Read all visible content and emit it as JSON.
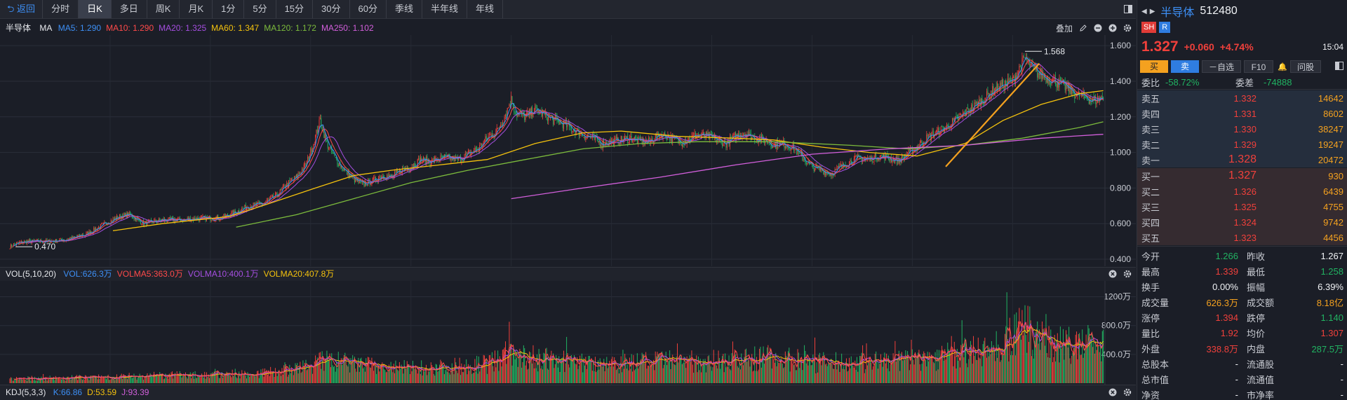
{
  "toolbar": {
    "back_label": "返回",
    "periods": [
      "分时",
      "日K",
      "多日",
      "周K",
      "月K",
      "1分",
      "5分",
      "15分",
      "30分",
      "60分",
      "季线",
      "半年线",
      "年线"
    ],
    "active_period": "日K"
  },
  "main_legend": {
    "name": "半导体",
    "ma_label": "MA",
    "items": [
      {
        "text": "MA5: 1.290",
        "color": "#3d8ff5"
      },
      {
        "text": "MA10: 1.290",
        "color": "#ff4a4a"
      },
      {
        "text": "MA20: 1.325",
        "color": "#a54ee0"
      },
      {
        "text": "MA60: 1.347",
        "color": "#f4c20d"
      },
      {
        "text": "MA120: 1.172",
        "color": "#7cbb3c"
      },
      {
        "text": "MA250: 1.102",
        "color": "#d35fdc"
      }
    ],
    "overlay_label": "叠加"
  },
  "vol_legend": {
    "name": "VOL(5,10,20)",
    "items": [
      {
        "text": "VOL:626.3万",
        "color": "#3d8ff5"
      },
      {
        "text": "VOLMA5:363.0万",
        "color": "#ff4a4a"
      },
      {
        "text": "VOLMA10:400.1万",
        "color": "#a54ee0"
      },
      {
        "text": "VOLMA20:407.8万",
        "color": "#f4c20d"
      }
    ]
  },
  "kdj_legend": {
    "name": "KDJ(5,3,3)",
    "items": [
      {
        "text": "K:66.86",
        "color": "#3d8ff5"
      },
      {
        "text": "D:53.59",
        "color": "#f4c20d"
      },
      {
        "text": "J:93.39",
        "color": "#d35fdc"
      }
    ]
  },
  "chart_data": [
    {
      "type": "candlestick",
      "ylim": [
        0.4,
        1.64
      ],
      "yticks": [
        "1.600",
        "1.400",
        "1.200",
        "1.000",
        "0.800",
        "0.600",
        "0.400"
      ],
      "ytick_values": [
        1.6,
        1.4,
        1.2,
        1.0,
        0.8,
        0.6,
        0.4
      ],
      "annotations": [
        {
          "text": "1.568",
          "value": 1.568
        },
        {
          "text": "0.470",
          "value": 0.47
        }
      ],
      "close_path": [
        [
          0,
          0.47
        ],
        [
          8,
          0.49
        ],
        [
          20,
          0.5
        ],
        [
          40,
          0.5
        ],
        [
          60,
          0.51
        ],
        [
          80,
          0.54
        ],
        [
          100,
          0.6
        ],
        [
          115,
          0.64
        ],
        [
          125,
          0.65
        ],
        [
          140,
          0.6
        ],
        [
          160,
          0.62
        ],
        [
          180,
          0.62
        ],
        [
          200,
          0.63
        ],
        [
          220,
          0.63
        ],
        [
          235,
          0.66
        ],
        [
          250,
          0.7
        ],
        [
          265,
          0.71
        ],
        [
          280,
          0.76
        ],
        [
          290,
          0.82
        ],
        [
          300,
          0.86
        ],
        [
          310,
          0.93
        ],
        [
          318,
          1.05
        ],
        [
          325,
          1.18
        ],
        [
          332,
          1.05
        ],
        [
          340,
          0.97
        ],
        [
          350,
          0.9
        ],
        [
          360,
          0.85
        ],
        [
          370,
          0.82
        ],
        [
          380,
          0.84
        ],
        [
          390,
          0.87
        ],
        [
          400,
          0.86
        ],
        [
          410,
          0.9
        ],
        [
          420,
          0.92
        ],
        [
          430,
          0.96
        ],
        [
          440,
          0.95
        ],
        [
          455,
          0.97
        ],
        [
          470,
          0.96
        ],
        [
          480,
          0.99
        ],
        [
          490,
          1.02
        ],
        [
          500,
          1.08
        ],
        [
          510,
          1.12
        ],
        [
          518,
          1.2
        ],
        [
          525,
          1.3
        ],
        [
          530,
          1.22
        ],
        [
          540,
          1.2
        ],
        [
          550,
          1.24
        ],
        [
          560,
          1.21
        ],
        [
          570,
          1.18
        ],
        [
          580,
          1.16
        ],
        [
          590,
          1.13
        ],
        [
          600,
          1.1
        ],
        [
          610,
          1.08
        ],
        [
          620,
          1.05
        ],
        [
          630,
          1.06
        ],
        [
          640,
          1.07
        ],
        [
          650,
          1.08
        ],
        [
          660,
          1.06
        ],
        [
          670,
          1.06
        ],
        [
          680,
          1.1
        ],
        [
          690,
          1.09
        ],
        [
          700,
          1.06
        ],
        [
          710,
          1.07
        ],
        [
          720,
          1.1
        ],
        [
          730,
          1.09
        ],
        [
          740,
          1.07
        ],
        [
          750,
          1.05
        ],
        [
          760,
          1.09
        ],
        [
          770,
          1.11
        ],
        [
          780,
          1.08
        ],
        [
          790,
          1.07
        ],
        [
          800,
          1.04
        ],
        [
          810,
          1.05
        ],
        [
          820,
          1.03
        ],
        [
          830,
          0.97
        ],
        [
          840,
          0.92
        ],
        [
          850,
          0.9
        ],
        [
          860,
          0.88
        ],
        [
          870,
          0.92
        ],
        [
          880,
          0.95
        ],
        [
          890,
          0.97
        ],
        [
          900,
          0.96
        ],
        [
          910,
          0.98
        ],
        [
          920,
          0.97
        ],
        [
          930,
          0.95
        ],
        [
          940,
          0.99
        ],
        [
          950,
          1.03
        ],
        [
          960,
          1.08
        ],
        [
          970,
          1.11
        ],
        [
          980,
          1.14
        ],
        [
          990,
          1.18
        ],
        [
          1000,
          1.22
        ],
        [
          1010,
          1.26
        ],
        [
          1020,
          1.3
        ],
        [
          1030,
          1.35
        ],
        [
          1040,
          1.38
        ],
        [
          1050,
          1.4
        ],
        [
          1058,
          1.48
        ],
        [
          1063,
          1.53
        ],
        [
          1068,
          1.49
        ],
        [
          1075,
          1.45
        ],
        [
          1085,
          1.42
        ],
        [
          1095,
          1.4
        ],
        [
          1105,
          1.37
        ],
        [
          1115,
          1.33
        ],
        [
          1125,
          1.31
        ],
        [
          1135,
          1.29
        ],
        [
          1145,
          1.31
        ]
      ],
      "ma_lines": [
        {
          "name": "MA60",
          "color": "#f4c20d",
          "points": [
            [
              108,
              0.56
            ],
            [
              160,
              0.6
            ],
            [
              230,
              0.64
            ],
            [
              270,
              0.71
            ],
            [
              320,
              0.8
            ],
            [
              360,
              0.87
            ],
            [
              400,
              0.9
            ],
            [
              450,
              0.93
            ],
            [
              500,
              0.96
            ],
            [
              550,
              1.05
            ],
            [
              600,
              1.11
            ],
            [
              640,
              1.12
            ],
            [
              700,
              1.09
            ],
            [
              760,
              1.08
            ],
            [
              800,
              1.07
            ],
            [
              850,
              1.03
            ],
            [
              900,
              1.0
            ],
            [
              950,
              0.98
            ],
            [
              1000,
              1.05
            ],
            [
              1040,
              1.18
            ],
            [
              1080,
              1.27
            ],
            [
              1120,
              1.33
            ],
            [
              1145,
              1.347
            ]
          ]
        },
        {
          "name": "MA120",
          "color": "#7cbb3c",
          "points": [
            [
              237,
              0.58
            ],
            [
              300,
              0.65
            ],
            [
              360,
              0.74
            ],
            [
              420,
              0.83
            ],
            [
              480,
              0.9
            ],
            [
              540,
              0.96
            ],
            [
              600,
              1.02
            ],
            [
              660,
              1.05
            ],
            [
              720,
              1.06
            ],
            [
              800,
              1.06
            ],
            [
              880,
              1.04
            ],
            [
              940,
              1.02
            ],
            [
              1000,
              1.04
            ],
            [
              1060,
              1.08
            ],
            [
              1120,
              1.14
            ],
            [
              1145,
              1.172
            ]
          ]
        },
        {
          "name": "MA250",
          "color": "#d35fdc",
          "points": [
            [
              525,
              0.74
            ],
            [
              600,
              0.8
            ],
            [
              680,
              0.86
            ],
            [
              760,
              0.93
            ],
            [
              840,
              0.99
            ],
            [
              920,
              1.02
            ],
            [
              1000,
              1.04
            ],
            [
              1080,
              1.08
            ],
            [
              1145,
              1.102
            ]
          ]
        }
      ],
      "trendline": {
        "color": "#f4a11f",
        "points": [
          [
            980,
            0.92
          ],
          [
            1078,
            1.5
          ]
        ]
      }
    },
    {
      "type": "bar",
      "name": "VOL",
      "ylim": [
        0,
        1400
      ],
      "yticks": [
        "1200万",
        "800.0万",
        "400.0万"
      ],
      "ytick_values": [
        1200,
        800,
        400
      ],
      "volume_profile": [
        [
          0,
          60
        ],
        [
          100,
          90
        ],
        [
          150,
          110
        ],
        [
          200,
          120
        ],
        [
          260,
          140
        ],
        [
          300,
          200
        ],
        [
          330,
          330
        ],
        [
          360,
          280
        ],
        [
          400,
          220
        ],
        [
          450,
          230
        ],
        [
          500,
          280
        ],
        [
          520,
          420
        ],
        [
          560,
          340
        ],
        [
          600,
          300
        ],
        [
          650,
          300
        ],
        [
          700,
          320
        ],
        [
          760,
          330
        ],
        [
          800,
          380
        ],
        [
          840,
          300
        ],
        [
          880,
          300
        ],
        [
          920,
          320
        ],
        [
          960,
          360
        ],
        [
          1000,
          440
        ],
        [
          1030,
          500
        ],
        [
          1060,
          760
        ],
        [
          1080,
          700
        ],
        [
          1100,
          560
        ],
        [
          1120,
          520
        ],
        [
          1145,
          626
        ]
      ]
    }
  ],
  "stock": {
    "name": "半导体",
    "code": "512480",
    "exchange": "SH",
    "badge": "R",
    "price": "1.327",
    "change": "+0.060",
    "change_pct": "+4.74%",
    "time": "15:04"
  },
  "actions": {
    "buy": "买",
    "sell": "卖",
    "watchlist": "自选",
    "f10": "F10",
    "ask": "问股"
  },
  "order_ratio": {
    "wei_bi_label": "委比",
    "wei_bi_value": "-58.72%",
    "wei_cha_label": "委差",
    "wei_cha_value": "-74888"
  },
  "asks": [
    {
      "label": "卖五",
      "price": "1.332",
      "volume": "14642"
    },
    {
      "label": "卖四",
      "price": "1.331",
      "volume": "8602"
    },
    {
      "label": "卖三",
      "price": "1.330",
      "volume": "38247"
    },
    {
      "label": "卖二",
      "price": "1.329",
      "volume": "19247"
    },
    {
      "label": "卖一",
      "price": "1.328",
      "volume": "20472"
    }
  ],
  "bids": [
    {
      "label": "买一",
      "price": "1.327",
      "volume": "930"
    },
    {
      "label": "买二",
      "price": "1.326",
      "volume": "6439"
    },
    {
      "label": "买三",
      "price": "1.325",
      "volume": "4755"
    },
    {
      "label": "买四",
      "price": "1.324",
      "volume": "9742"
    },
    {
      "label": "买五",
      "price": "1.323",
      "volume": "4456"
    }
  ],
  "stats": [
    {
      "l": "今开",
      "lv": "1.266",
      "lc": "green",
      "r": "昨收",
      "rv": "1.267",
      "rc": "white"
    },
    {
      "l": "最高",
      "lv": "1.339",
      "lc": "red",
      "r": "最低",
      "rv": "1.258",
      "rc": "green"
    },
    {
      "l": "换手",
      "lv": "0.00%",
      "lc": "white",
      "r": "振幅",
      "rv": "6.39%",
      "rc": "white"
    },
    {
      "l": "成交量",
      "lv": "626.3万",
      "lc": "orange",
      "r": "成交额",
      "rv": "8.18亿",
      "rc": "orange"
    },
    {
      "l": "涨停",
      "lv": "1.394",
      "lc": "red",
      "r": "跌停",
      "rv": "1.140",
      "rc": "green"
    },
    {
      "l": "量比",
      "lv": "1.92",
      "lc": "red",
      "r": "均价",
      "rv": "1.307",
      "rc": "red"
    },
    {
      "l": "外盘",
      "lv": "338.8万",
      "lc": "red",
      "r": "内盘",
      "rv": "287.5万",
      "rc": "green"
    },
    {
      "l": "总股本",
      "lv": "-",
      "lc": "white",
      "r": "流通股",
      "rv": "-",
      "rc": "white"
    },
    {
      "l": "总市值",
      "lv": "-",
      "lc": "white",
      "r": "流通值",
      "rv": "-",
      "rc": "white"
    },
    {
      "l": "净资",
      "lv": "-",
      "lc": "white",
      "r": "市净率",
      "rv": "-",
      "rc": "white"
    }
  ]
}
